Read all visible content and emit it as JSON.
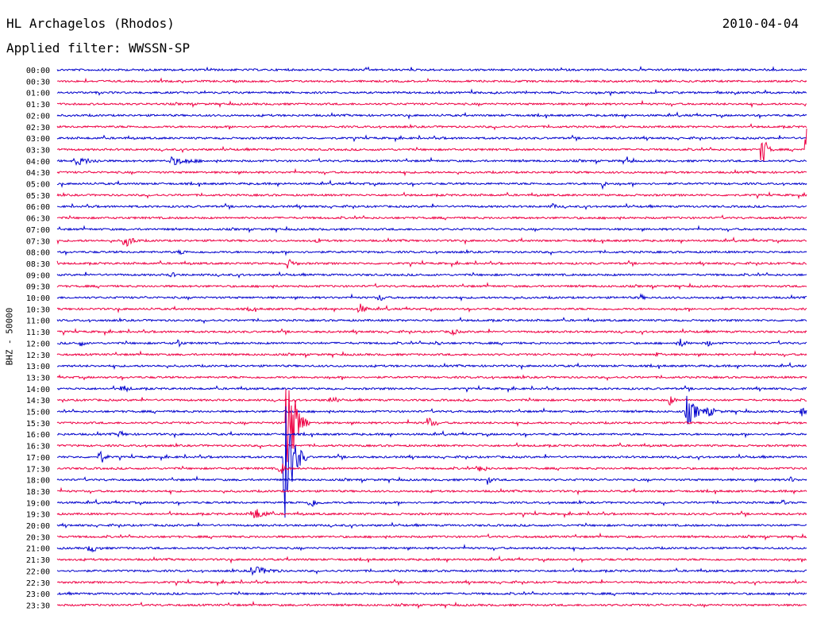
{
  "header": {
    "station": "HL Archagelos (Rhodos)",
    "date": "2010-04-04",
    "filter": "Applied filter: WWSSN-SP"
  },
  "chart_data": {
    "type": "line",
    "title": "HL Archagelos (Rhodos)",
    "date": "2010-04-04",
    "filter": "WWSSN-SP",
    "ylabel": "BHZ - 50000",
    "trace_colors": [
      "#0000cc",
      "#ee0044"
    ],
    "row_labels": [
      "00:00",
      "00:30",
      "01:00",
      "01:30",
      "02:00",
      "02:30",
      "03:00",
      "03:30",
      "04:00",
      "04:30",
      "05:00",
      "05:30",
      "06:00",
      "06:30",
      "07:00",
      "07:30",
      "08:00",
      "08:30",
      "09:00",
      "09:30",
      "10:00",
      "10:30",
      "11:00",
      "11:30",
      "12:00",
      "12:30",
      "13:00",
      "13:30",
      "14:00",
      "14:30",
      "15:00",
      "15:30",
      "16:00",
      "16:30",
      "17:00",
      "17:30",
      "18:00",
      "18:30",
      "19:00",
      "19:30",
      "20:00",
      "20:30",
      "21:00",
      "21:30",
      "22:00",
      "22:30",
      "23:00",
      "23:30"
    ],
    "row_duration_min": 30,
    "events": [
      {
        "row": 7,
        "minute": 28.2,
        "amp": 28,
        "dur": 0.5
      },
      {
        "row": 7,
        "minute": 30.0,
        "amp": 30,
        "dur": 1.4
      },
      {
        "row": 7,
        "minute": 31.0,
        "amp": 18,
        "dur": 1.0
      },
      {
        "row": 8,
        "minute": 0.7,
        "amp": 6,
        "dur": 2.5
      },
      {
        "row": 8,
        "minute": 4.5,
        "amp": 6,
        "dur": 3.0
      },
      {
        "row": 8,
        "minute": 22.8,
        "amp": 6,
        "dur": 0.6
      },
      {
        "row": 10,
        "minute": 21.8,
        "amp": 8,
        "dur": 0.4
      },
      {
        "row": 12,
        "minute": 19.8,
        "amp": 6,
        "dur": 0.5
      },
      {
        "row": 15,
        "minute": 2.7,
        "amp": 10,
        "dur": 1.0
      },
      {
        "row": 15,
        "minute": 10.4,
        "amp": 5,
        "dur": 0.5
      },
      {
        "row": 16,
        "minute": 4.9,
        "amp": 5,
        "dur": 0.8
      },
      {
        "row": 17,
        "minute": 9.2,
        "amp": 7,
        "dur": 1.0
      },
      {
        "row": 18,
        "minute": 4.5,
        "amp": 5,
        "dur": 0.8
      },
      {
        "row": 20,
        "minute": 12.9,
        "amp": 6,
        "dur": 0.8
      },
      {
        "row": 20,
        "minute": 23.3,
        "amp": 6,
        "dur": 0.6
      },
      {
        "row": 21,
        "minute": 7.7,
        "amp": 5,
        "dur": 0.6
      },
      {
        "row": 21,
        "minute": 12.1,
        "amp": 8,
        "dur": 0.8
      },
      {
        "row": 23,
        "minute": 15.7,
        "amp": 6,
        "dur": 1.0
      },
      {
        "row": 24,
        "minute": 0.9,
        "amp": 6,
        "dur": 0.6
      },
      {
        "row": 24,
        "minute": 4.8,
        "amp": 7,
        "dur": 0.6
      },
      {
        "row": 24,
        "minute": 15.2,
        "amp": 5,
        "dur": 0.6
      },
      {
        "row": 24,
        "minute": 24.9,
        "amp": 7,
        "dur": 0.8
      },
      {
        "row": 24,
        "minute": 26.0,
        "amp": 6,
        "dur": 0.6
      },
      {
        "row": 25,
        "minute": 24.0,
        "amp": 6,
        "dur": 0.5
      },
      {
        "row": 28,
        "minute": 2.6,
        "amp": 7,
        "dur": 0.8
      },
      {
        "row": 29,
        "minute": 10.9,
        "amp": 5,
        "dur": 1.2
      },
      {
        "row": 29,
        "minute": 24.5,
        "amp": 8,
        "dur": 0.6
      },
      {
        "row": 30,
        "minute": 25.2,
        "amp": 20,
        "dur": 1.2
      },
      {
        "row": 30,
        "minute": 26.0,
        "amp": 9,
        "dur": 1.0
      },
      {
        "row": 30,
        "minute": 29.8,
        "amp": 7,
        "dur": 0.5
      },
      {
        "row": 31,
        "minute": 9.2,
        "amp": 88,
        "dur": 0.9
      },
      {
        "row": 31,
        "minute": 14.8,
        "amp": 10,
        "dur": 0.8
      },
      {
        "row": 32,
        "minute": 2.5,
        "amp": 6,
        "dur": 0.6
      },
      {
        "row": 34,
        "minute": 1.7,
        "amp": 12,
        "dur": 0.6
      },
      {
        "row": 34,
        "minute": 9.1,
        "amp": 90,
        "dur": 0.9
      },
      {
        "row": 35,
        "minute": 8.9,
        "amp": 12,
        "dur": 0.6
      },
      {
        "row": 35,
        "minute": 16.9,
        "amp": 7,
        "dur": 0.8
      },
      {
        "row": 36,
        "minute": 17.2,
        "amp": 7,
        "dur": 0.6
      },
      {
        "row": 36,
        "minute": 29.3,
        "amp": 5,
        "dur": 0.8
      },
      {
        "row": 38,
        "minute": 10.1,
        "amp": 8,
        "dur": 1.0
      },
      {
        "row": 38,
        "minute": 29.0,
        "amp": 5,
        "dur": 0.5
      },
      {
        "row": 39,
        "minute": 7.8,
        "amp": 10,
        "dur": 1.4
      },
      {
        "row": 42,
        "minute": 1.3,
        "amp": 7,
        "dur": 1.0
      },
      {
        "row": 44,
        "minute": 7.7,
        "amp": 7,
        "dur": 2.6
      }
    ]
  }
}
